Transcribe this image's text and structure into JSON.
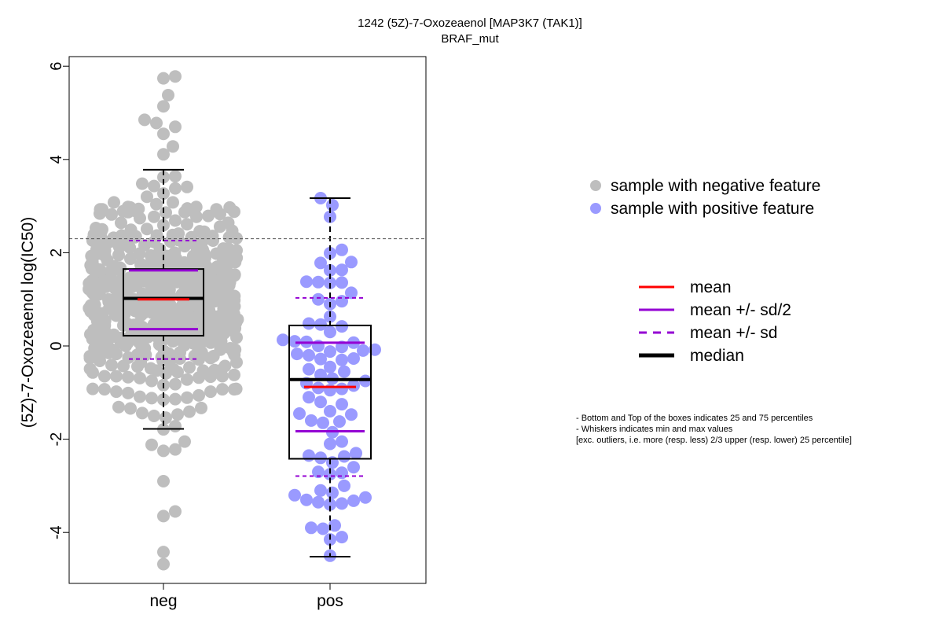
{
  "chart_data": {
    "type": "scatter",
    "subtype": "beeswarm-boxplot",
    "title": "1242 (5Z)-7-Oxozeaenol [MAP3K7 (TAK1)]",
    "subtitle": "BRAF_mut",
    "xlabel": "",
    "ylabel": "(5Z)-7-Oxozeaenol log(IC50)",
    "categories": [
      "neg",
      "pos"
    ],
    "ylim": [
      -5.0,
      6.2
    ],
    "yticks": [
      "-4",
      "-2",
      "0",
      "2",
      "4",
      "6"
    ],
    "threshold_y": 2.3,
    "series": [
      {
        "name": "sample with negative feature",
        "category": "neg",
        "color": "#bebebe",
        "stats": {
          "min": -1.78,
          "q1": 0.22,
          "median": 1.02,
          "q3": 1.65,
          "max": 3.78,
          "mean": 1.0,
          "sd_half_low": 0.36,
          "sd_half_high": 1.62,
          "sd_low": -0.28,
          "sd_high": 2.26
        },
        "n_points": 620,
        "extreme_points": [
          5.78,
          5.74,
          5.38,
          5.14,
          4.85,
          4.78,
          4.7,
          4.55,
          -2.05,
          -2.12,
          -2.22,
          -2.25,
          -2.9,
          -3.55,
          -3.65,
          -4.42,
          -4.68
        ]
      },
      {
        "name": "sample with positive feature",
        "category": "pos",
        "color": "#9a9aff",
        "stats": {
          "min": -4.52,
          "q1": -2.42,
          "median": -0.72,
          "q3": 0.44,
          "max": 3.17,
          "mean": -0.88,
          "sd_half_low": -1.83,
          "sd_half_high": 0.07,
          "sd_low": -2.79,
          "sd_high": 1.03
        },
        "values": [
          3.17,
          3.02,
          2.77,
          2.06,
          1.99,
          1.8,
          1.78,
          1.63,
          1.62,
          1.38,
          1.37,
          1.36,
          1.35,
          1.14,
          1.0,
          0.96,
          0.9,
          0.63,
          0.48,
          0.46,
          0.42,
          0.3,
          0.13,
          0.1,
          0.09,
          0.07,
          0.0,
          -0.02,
          -0.08,
          -0.1,
          -0.12,
          -0.17,
          -0.2,
          -0.27,
          -0.28,
          -0.3,
          -0.45,
          -0.5,
          -0.55,
          -0.62,
          -0.7,
          -0.75,
          -0.8,
          -0.85,
          -0.9,
          -0.92,
          -0.95,
          -1.1,
          -1.2,
          -1.25,
          -1.4,
          -1.45,
          -1.47,
          -1.6,
          -1.62,
          -1.65,
          -1.85,
          -2.05,
          -2.1,
          -2.3,
          -2.35,
          -2.37,
          -2.4,
          -2.5,
          -2.6,
          -2.7,
          -2.72,
          -2.75,
          -3.0,
          -3.1,
          -3.15,
          -3.2,
          -3.25,
          -3.3,
          -3.32,
          -3.35,
          -3.38,
          -3.4,
          -3.85,
          -3.9,
          -3.92,
          -4.1,
          -4.15,
          -4.5
        ]
      }
    ],
    "legend_points": [
      "sample with negative feature",
      "sample with positive feature"
    ],
    "legend_lines": [
      {
        "label": "mean",
        "color": "#ff0000",
        "style": "solid"
      },
      {
        "label": "mean +/- sd/2",
        "color": "#9400d3",
        "style": "solid"
      },
      {
        "label": "mean +/- sd",
        "color": "#9400d3",
        "style": "dashed"
      },
      {
        "label": "median",
        "color": "#000000",
        "style": "solid-thick"
      }
    ],
    "notes": [
      "- Bottom and Top of the boxes indicates 25 and 75 percentiles",
      "- Whiskers indicates min and max values",
      "[exc. outliers, i.e. more (resp. less) 2/3 upper (resp. lower) 25 percentile]"
    ]
  }
}
